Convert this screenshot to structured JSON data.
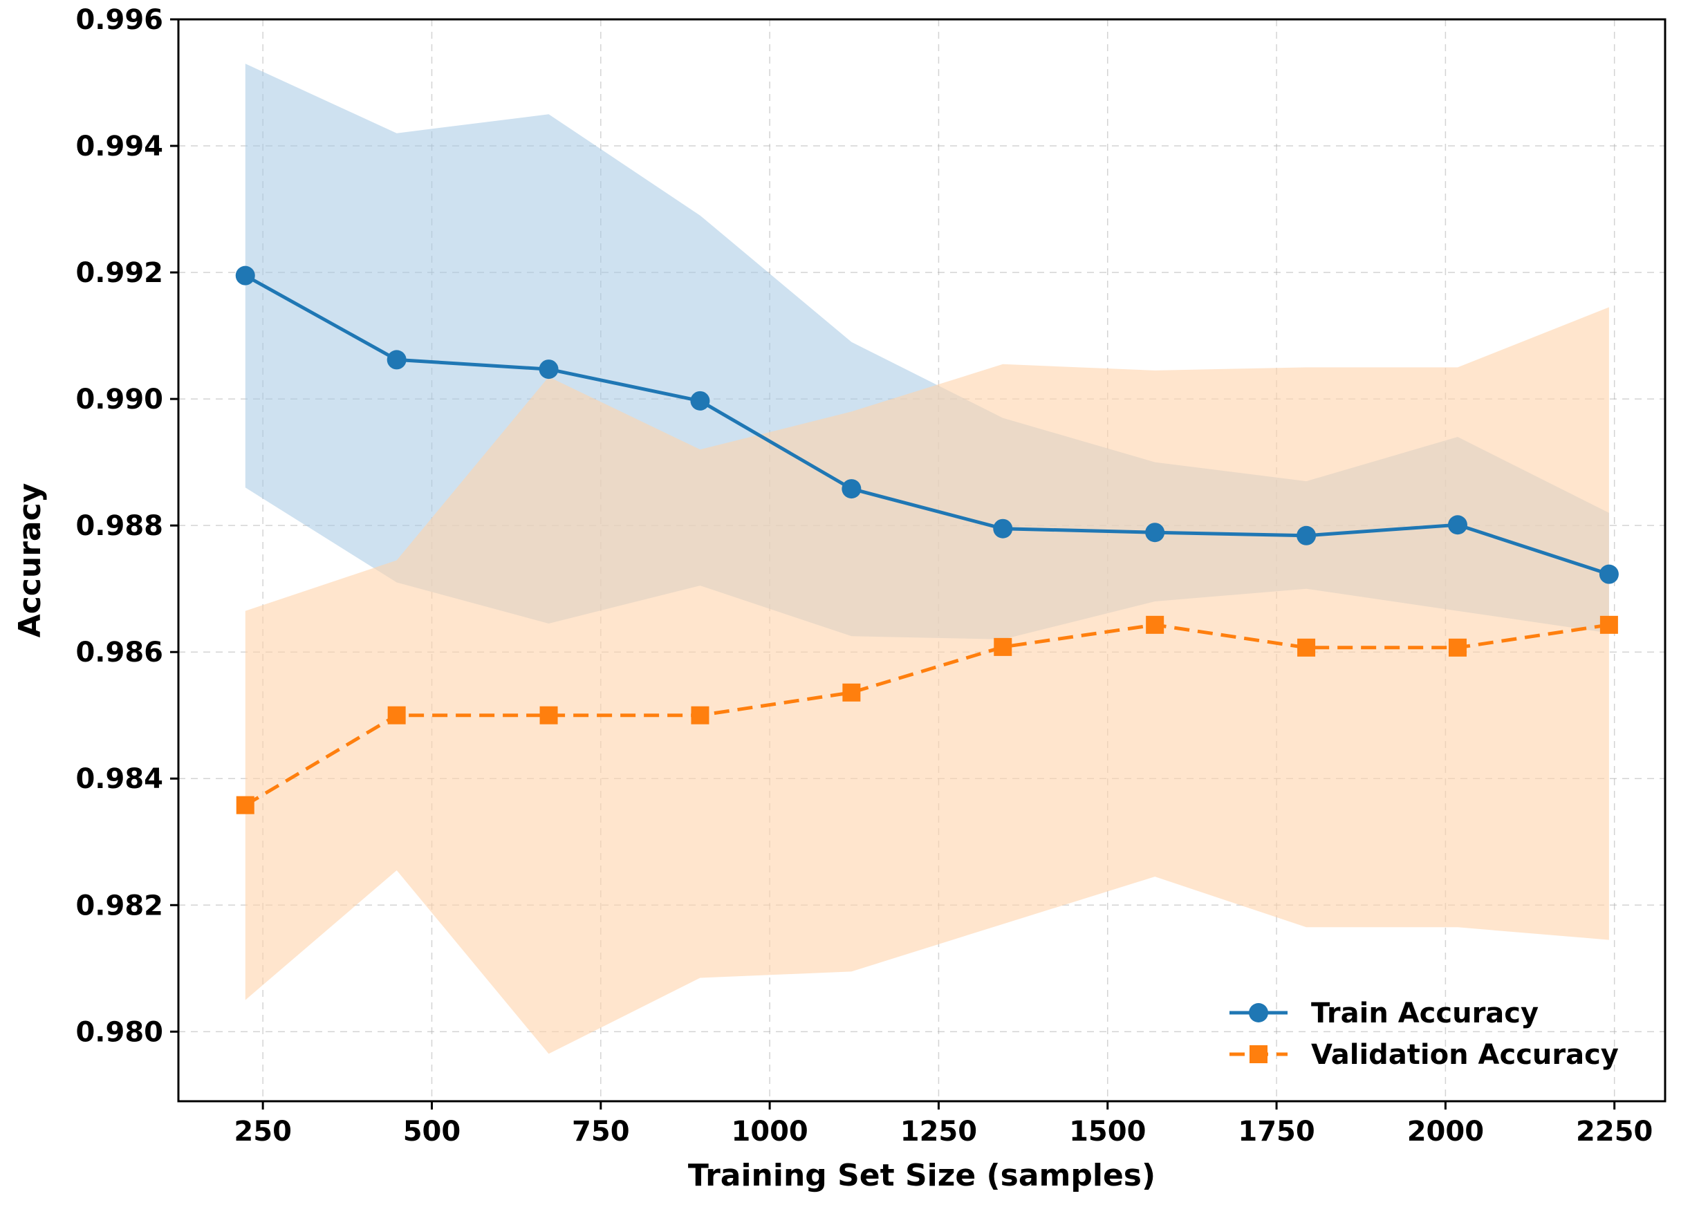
{
  "chart_data": {
    "type": "line",
    "title": "",
    "xlabel": "Training Set Size (samples)",
    "ylabel": "Accuracy",
    "xlim": [
      125,
      2325
    ],
    "ylim": [
      0.9789,
      0.996
    ],
    "grid": true,
    "legend_position": "lower-right",
    "x_ticks": [
      250,
      500,
      750,
      1000,
      1250,
      1500,
      1750,
      2000,
      2250
    ],
    "y_ticks": [
      0.98,
      0.982,
      0.984,
      0.986,
      0.988,
      0.99,
      0.992,
      0.994,
      0.996
    ],
    "x_tick_labels": [
      "250",
      "500",
      "750",
      "1000",
      "1250",
      "1500",
      "1750",
      "2000",
      "2250"
    ],
    "y_tick_labels": [
      "0.980",
      "0.982",
      "0.984",
      "0.986",
      "0.988",
      "0.990",
      "0.992",
      "0.994",
      "0.996"
    ],
    "x": [
      224,
      448,
      673,
      897,
      1121,
      1345,
      1570,
      1794,
      2018,
      2242
    ],
    "series": [
      {
        "name": "Train Accuracy",
        "color": "#1f77b4",
        "band_color": "#a6c8e4",
        "marker": "circle",
        "line_style": "solid",
        "values": [
          0.99195,
          0.99062,
          0.99047,
          0.98997,
          0.98858,
          0.98795,
          0.98789,
          0.98784,
          0.98801,
          0.98723
        ],
        "upper": [
          0.9953,
          0.9942,
          0.9945,
          0.9929,
          0.9909,
          0.9897,
          0.989,
          0.9887,
          0.9894,
          0.9882
        ],
        "lower": [
          0.9886,
          0.9871,
          0.98645,
          0.98705,
          0.98625,
          0.9862,
          0.9868,
          0.987,
          0.98665,
          0.9863
        ]
      },
      {
        "name": "Validation Accuracy",
        "color": "#ff7f0e",
        "band_color": "#ffd3ac",
        "marker": "square",
        "line_style": "dashed",
        "values": [
          0.98358,
          0.985,
          0.985,
          0.985,
          0.98536,
          0.98608,
          0.98643,
          0.98607,
          0.98607,
          0.98643
        ],
        "upper": [
          0.98665,
          0.98745,
          0.99035,
          0.9892,
          0.9898,
          0.99055,
          0.99045,
          0.9905,
          0.9905,
          0.99145
        ],
        "lower": [
          0.9805,
          0.98255,
          0.97965,
          0.98085,
          0.98095,
          0.9817,
          0.98245,
          0.98165,
          0.98165,
          0.98145
        ]
      }
    ]
  }
}
